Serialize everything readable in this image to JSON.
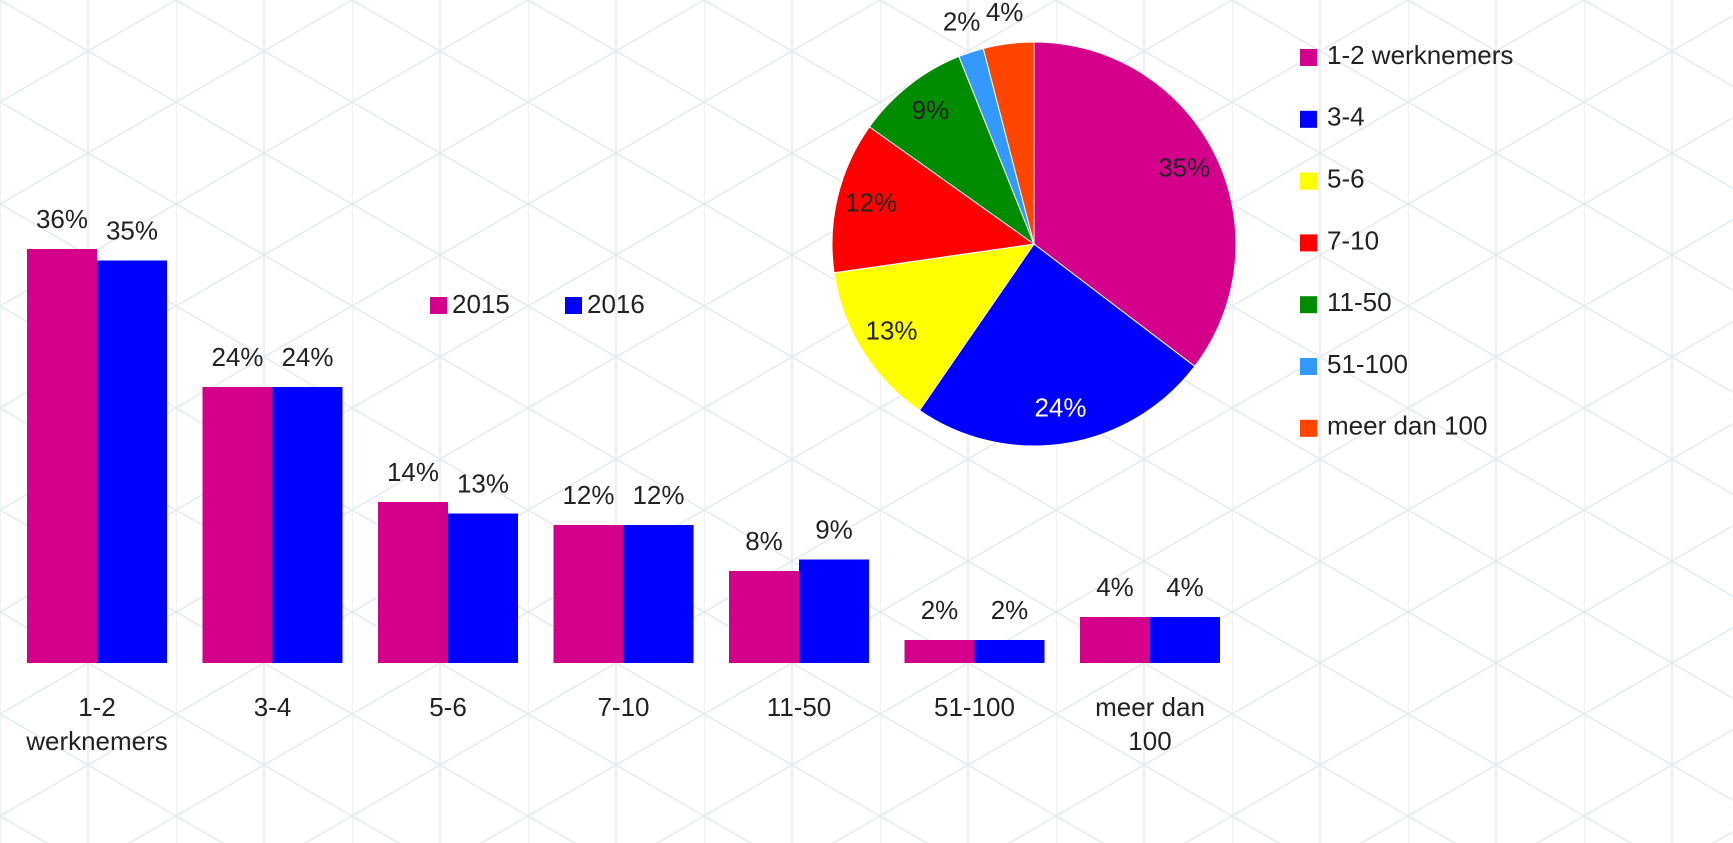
{
  "chart_data": [
    {
      "type": "bar",
      "categories": [
        "1-2 werknemers",
        "3-4",
        "5-6",
        "7-10",
        "11-50",
        "51-100",
        "meer dan 100"
      ],
      "series": [
        {
          "name": "2015",
          "color": "#d4008c",
          "values": [
            36,
            24,
            14,
            12,
            8,
            2,
            4
          ],
          "value_labels": [
            "36%",
            "24%",
            "14%",
            "12%",
            "8%",
            "2%",
            "4%"
          ]
        },
        {
          "name": "2016",
          "color": "#0000ff",
          "values": [
            35,
            24,
            13,
            12,
            9,
            2,
            4
          ],
          "value_labels": [
            "35%",
            "24%",
            "13%",
            "12%",
            "9%",
            "2%",
            "4%"
          ]
        }
      ]
    },
    {
      "type": "pie",
      "categories": [
        "1-2 werknemers",
        "3-4",
        "5-6",
        "7-10",
        "11-50",
        "51-100",
        "meer dan 100"
      ],
      "values": [
        35,
        24,
        13,
        12,
        9,
        2,
        4
      ],
      "value_labels": [
        "35%",
        "24%",
        "13%",
        "12%",
        "9%",
        "2%",
        "4%"
      ],
      "colors": [
        "#d4008c",
        "#0000ff",
        "#ffff00",
        "#ff0000",
        "#008c00",
        "#3399ff",
        "#ff4500"
      ]
    }
  ]
}
